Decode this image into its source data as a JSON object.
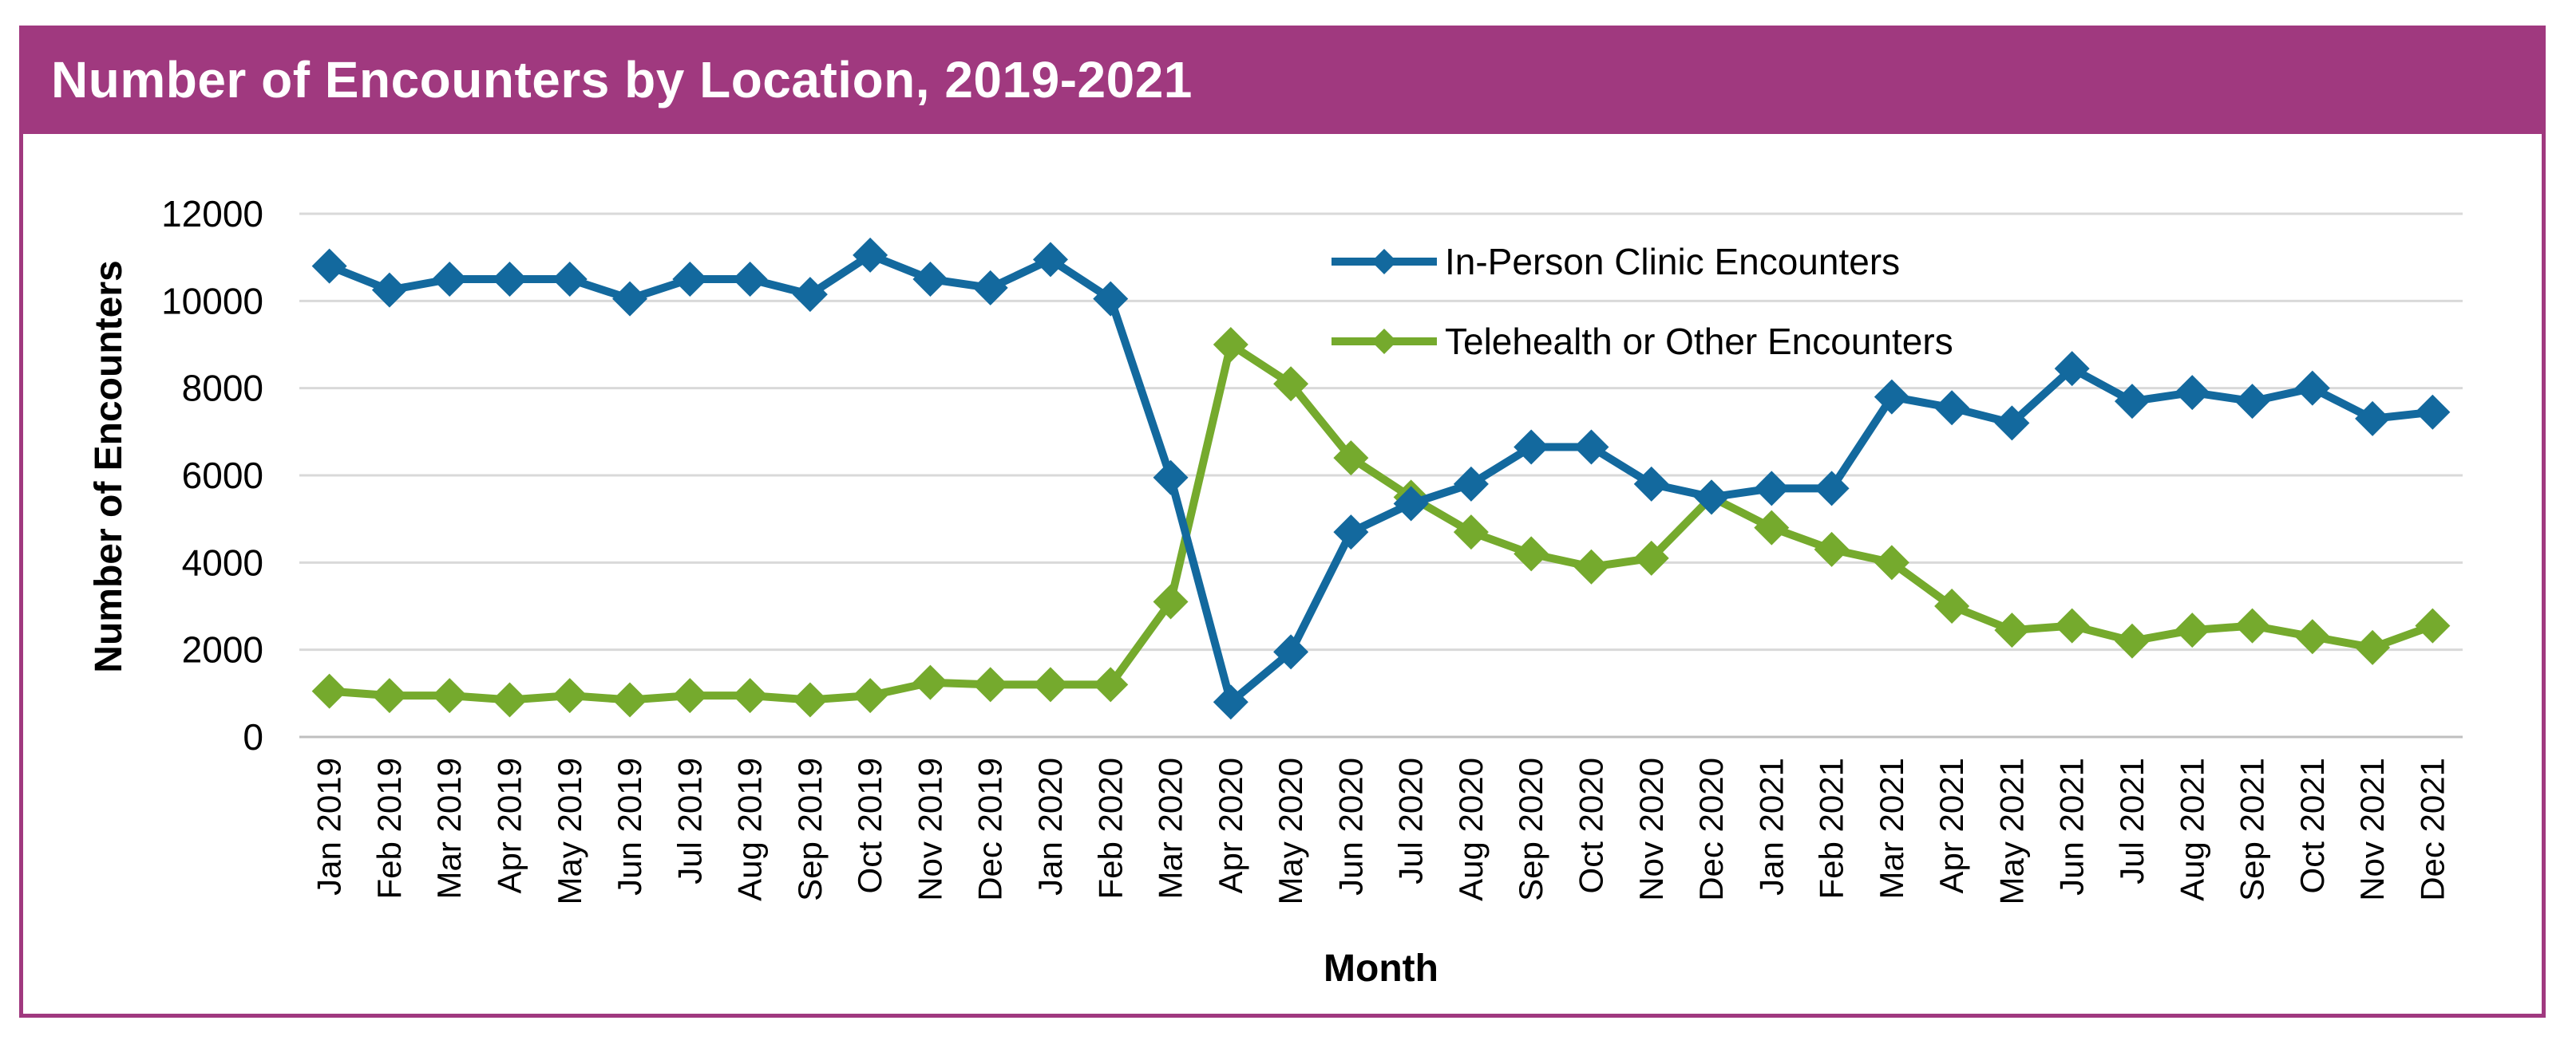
{
  "chart_data": {
    "type": "line",
    "title": "Number of Encounters by Location, 2019-2021",
    "xlabel": "Month",
    "ylabel": "Number of Encounters",
    "ylim": [
      0,
      12000
    ],
    "yticks": [
      0,
      2000,
      4000,
      6000,
      8000,
      10000,
      12000
    ],
    "grid": true,
    "legend_position": "top-right",
    "categories": [
      "Jan 2019",
      "Feb 2019",
      "Mar 2019",
      "Apr 2019",
      "May 2019",
      "Jun 2019",
      "Jul 2019",
      "Aug 2019",
      "Sep 2019",
      "Oct 2019",
      "Nov 2019",
      "Dec 2019",
      "Jan 2020",
      "Feb 2020",
      "Mar 2020",
      "Apr 2020",
      "May 2020",
      "Jun 2020",
      "Jul 2020",
      "Aug 2020",
      "Sep 2020",
      "Oct 2020",
      "Nov 2020",
      "Dec 2020",
      "Jan 2021",
      "Feb 2021",
      "Mar 2021",
      "Apr 2021",
      "May 2021",
      "Jun 2021",
      "Jul 2021",
      "Aug 2021",
      "Sep 2021",
      "Oct 2021",
      "Nov 2021",
      "Dec 2021"
    ],
    "series": [
      {
        "name": "In-Person Clinic Encounters",
        "color": "#13699e",
        "values": [
          10800,
          10250,
          10500,
          10500,
          10500,
          10050,
          10500,
          10500,
          10150,
          11050,
          10500,
          10300,
          10950,
          10050,
          5950,
          800,
          1950,
          4700,
          5350,
          5800,
          6650,
          6650,
          5800,
          5500,
          5700,
          5700,
          7800,
          7550,
          7200,
          8450,
          7700,
          7900,
          7700,
          8000,
          7300,
          7450
        ]
      },
      {
        "name": "Telehealth or Other Encounters",
        "color": "#75aa2d",
        "values": [
          1050,
          950,
          950,
          850,
          950,
          850,
          950,
          950,
          850,
          950,
          1250,
          1200,
          1200,
          1200,
          3100,
          9000,
          8100,
          6400,
          5500,
          4700,
          4200,
          3900,
          4100,
          5500,
          4800,
          4300,
          4000,
          3000,
          2450,
          2550,
          2200,
          2450,
          2550,
          2300,
          2050,
          2550
        ]
      }
    ]
  }
}
